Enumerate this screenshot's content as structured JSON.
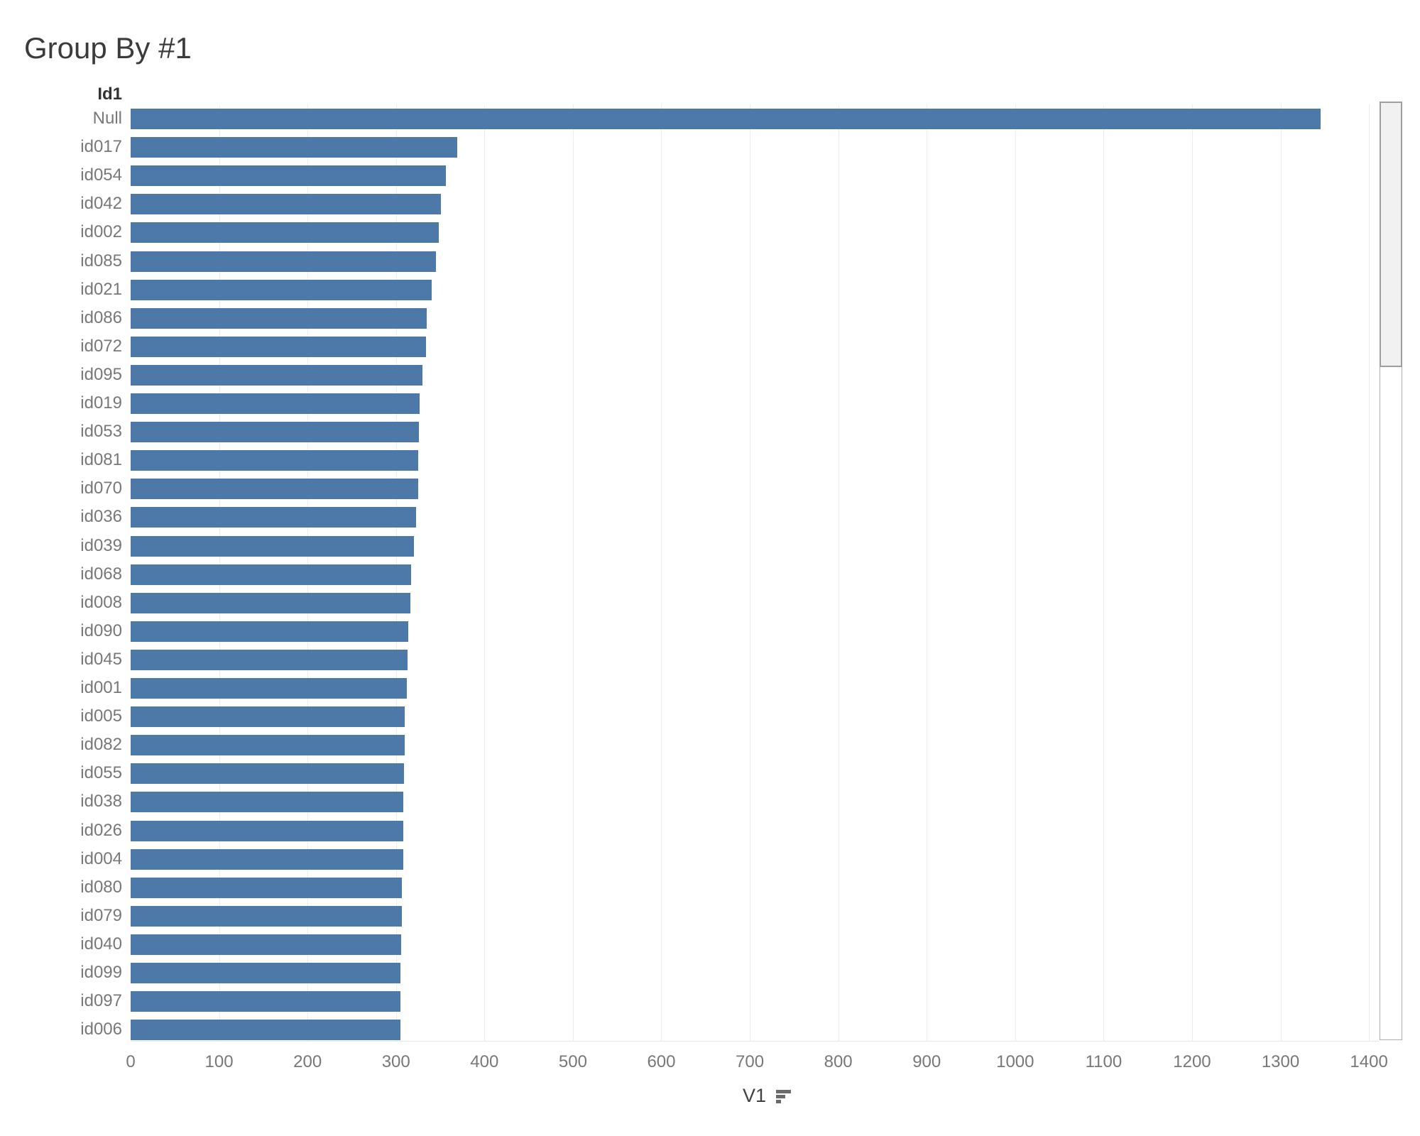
{
  "title": "Group By #1",
  "row_header": "Id1",
  "axis": {
    "title": "V1",
    "sort_icon": "sort-descending-icon"
  },
  "colors": {
    "bar": "#4d79a8",
    "title_text": "#3b3b3b",
    "header_text": "#333333",
    "label_text": "#787878",
    "gridline": "#ededed",
    "axis_line": "#e8e8e8",
    "sort_icon": "#6a6a6a"
  },
  "chart_data": {
    "type": "bar",
    "orientation": "horizontal",
    "title": "Group By #1",
    "xlabel": "V1",
    "ylabel": "Id1",
    "xlim": [
      0,
      1410
    ],
    "x_ticks": [
      0,
      100,
      200,
      300,
      400,
      500,
      600,
      700,
      800,
      900,
      1000,
      1100,
      1200,
      1300,
      1400
    ],
    "grid": true,
    "legend": false,
    "sort": "descending by V1",
    "categories": [
      "Null",
      "id017",
      "id054",
      "id042",
      "id002",
      "id085",
      "id021",
      "id086",
      "id072",
      "id095",
      "id019",
      "id053",
      "id081",
      "id070",
      "id036",
      "id039",
      "id068",
      "id008",
      "id090",
      "id045",
      "id001",
      "id005",
      "id082",
      "id055",
      "id038",
      "id026",
      "id004",
      "id080",
      "id079",
      "id040",
      "id099",
      "id097",
      "id006"
    ],
    "values": [
      1345,
      369,
      356,
      351,
      348,
      345,
      340,
      335,
      334,
      330,
      327,
      326,
      325,
      325,
      323,
      320,
      317,
      316,
      314,
      313,
      312,
      310,
      310,
      309,
      308,
      308,
      308,
      307,
      307,
      306,
      305,
      305,
      305
    ]
  }
}
